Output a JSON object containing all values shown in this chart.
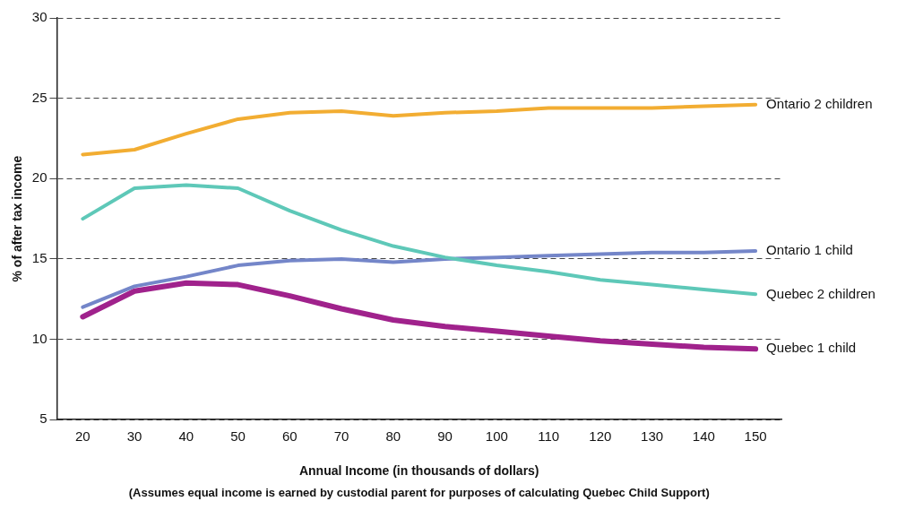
{
  "chart_data": {
    "type": "line",
    "xlabel": "Annual Income (in thousands of dollars)",
    "ylabel": "% of after tax income",
    "annotations": [
      "(Assumes equal income is earned by custodial parent for purposes of calculating Quebec Child Support)"
    ],
    "categories": [
      "20",
      "30",
      "40",
      "50",
      "60",
      "70",
      "80",
      "90",
      "100",
      "110",
      "120",
      "130",
      "140",
      "150"
    ],
    "ylim": [
      5,
      30
    ],
    "yticks": [
      5,
      10,
      15,
      20,
      25,
      30
    ],
    "grid": "y",
    "legend": false,
    "marker": "none",
    "line_style": "solid",
    "series": [
      {
        "name": "Ontario 2 children",
        "color": "#f2ad32",
        "values": [
          21.5,
          21.8,
          22.8,
          23.7,
          24.1,
          24.2,
          23.9,
          24.1,
          24.2,
          24.4,
          24.4,
          24.4,
          24.5,
          24.6
        ]
      },
      {
        "name": "Quebec 2 children",
        "color": "#5ec8b8",
        "values": [
          17.5,
          19.4,
          19.6,
          19.4,
          18.0,
          16.8,
          15.8,
          15.1,
          14.6,
          14.2,
          13.7,
          13.4,
          13.1,
          12.8
        ]
      },
      {
        "name": "Ontario 1 child",
        "color": "#7486c9",
        "values": [
          12.0,
          13.3,
          13.9,
          14.6,
          14.9,
          15.0,
          14.8,
          15.0,
          15.1,
          15.2,
          15.3,
          15.4,
          15.4,
          15.5
        ]
      },
      {
        "name": "Quebec 1 child",
        "color": "#a0228c",
        "values": [
          11.4,
          13.0,
          13.5,
          13.4,
          12.7,
          11.9,
          11.2,
          10.8,
          10.5,
          10.2,
          9.9,
          9.7,
          9.5,
          9.4
        ]
      }
    ]
  }
}
